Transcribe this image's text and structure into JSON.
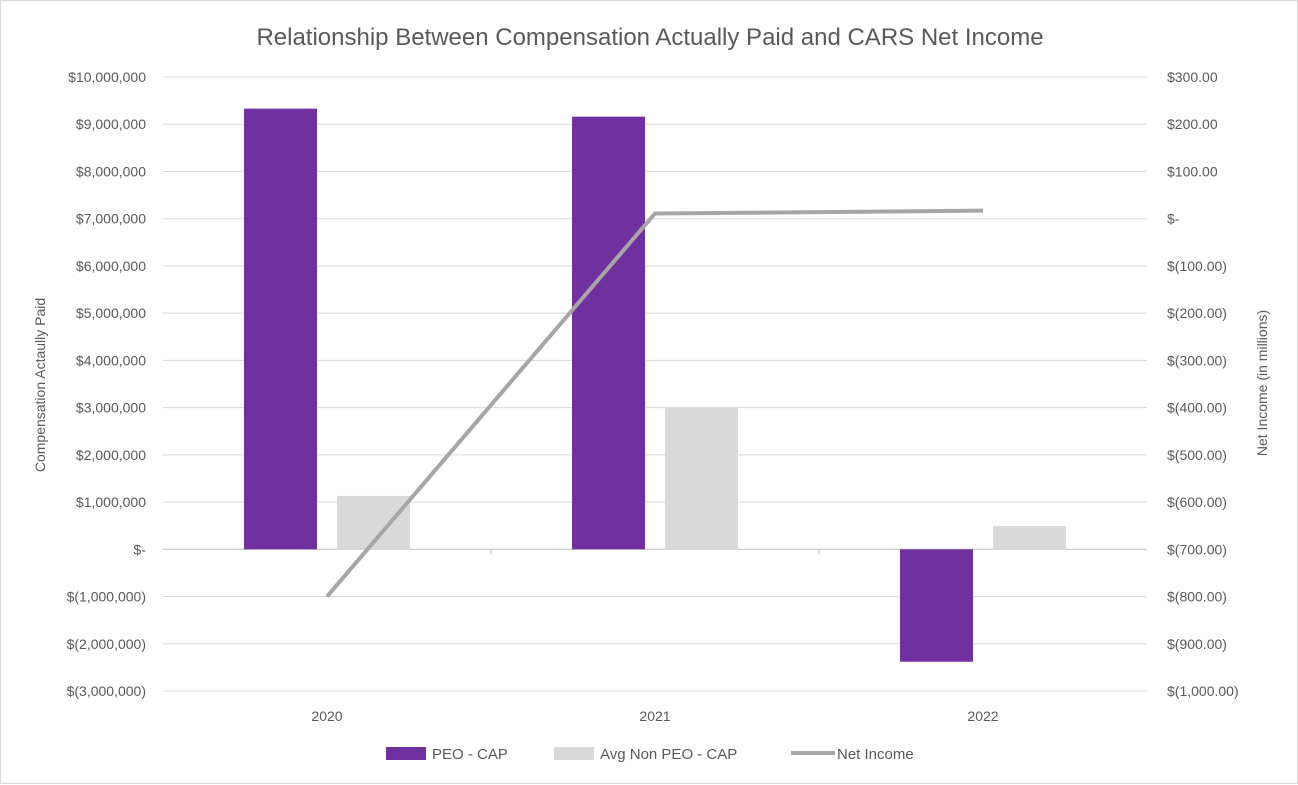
{
  "chart_data": {
    "type": "bar",
    "title": "Relationship Between Compensation  Actually Paid and CARS Net Income",
    "categories": [
      "2020",
      "2021",
      "2022"
    ],
    "series": [
      {
        "name": "PEO - CAP",
        "type": "bar",
        "axis": "left",
        "color": "#7030a0",
        "values": [
          9330000,
          9160000,
          -2380000
        ]
      },
      {
        "name": "Avg Non PEO - CAP",
        "type": "bar",
        "axis": "left",
        "color": "#d9d9d9",
        "values": [
          1130000,
          3000000,
          490000
        ]
      },
      {
        "name": "Net Income",
        "type": "line",
        "axis": "right",
        "color": "#a6a6a6",
        "values": [
          -800,
          11,
          17
        ]
      }
    ],
    "y_left": {
      "label": "Compensation Actaully Paid",
      "min": -3000000,
      "max": 10000000,
      "ticks": [
        10000000,
        9000000,
        8000000,
        7000000,
        6000000,
        5000000,
        4000000,
        3000000,
        2000000,
        1000000,
        0,
        -1000000,
        -2000000,
        -3000000
      ],
      "tick_labels": [
        "$10,000,000",
        "$9,000,000",
        "$8,000,000",
        "$7,000,000",
        "$6,000,000",
        "$5,000,000",
        "$4,000,000",
        "$3,000,000",
        "$2,000,000",
        "$1,000,000",
        "$-",
        "$(1,000,000)",
        "$(2,000,000)",
        "$(3,000,000)"
      ]
    },
    "y_right": {
      "label": "Net Income (in millions)",
      "min": -1000,
      "max": 300,
      "ticks": [
        300,
        200,
        100,
        0,
        -100,
        -200,
        -300,
        -400,
        -500,
        -600,
        -700,
        -800,
        -900,
        -1000
      ],
      "tick_labels": [
        "$300.00",
        "$200.00",
        "$100.00",
        "$-",
        "$(100.00)",
        "$(200.00)",
        "$(300.00)",
        "$(400.00)",
        "$(500.00)",
        "$(600.00)",
        "$(700.00)",
        "$(800.00)",
        "$(900.00)",
        "$(1,000.00)"
      ]
    },
    "grid": true,
    "legend": "bottom"
  }
}
